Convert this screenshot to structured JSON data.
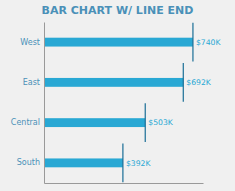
{
  "chart_data": {
    "type": "bar",
    "orientation": "horizontal",
    "title": "BAR CHART W/ LINE END",
    "categories": [
      "West",
      "East",
      "Central",
      "South"
    ],
    "values": [
      740,
      692,
      503,
      392
    ],
    "value_labels": [
      "$740K",
      "$692K",
      "$503K",
      "$392K"
    ],
    "color": "#29a8d4",
    "xlim": [
      0,
      790
    ],
    "grid": false,
    "data_labels": true,
    "tick_labels": "y"
  }
}
